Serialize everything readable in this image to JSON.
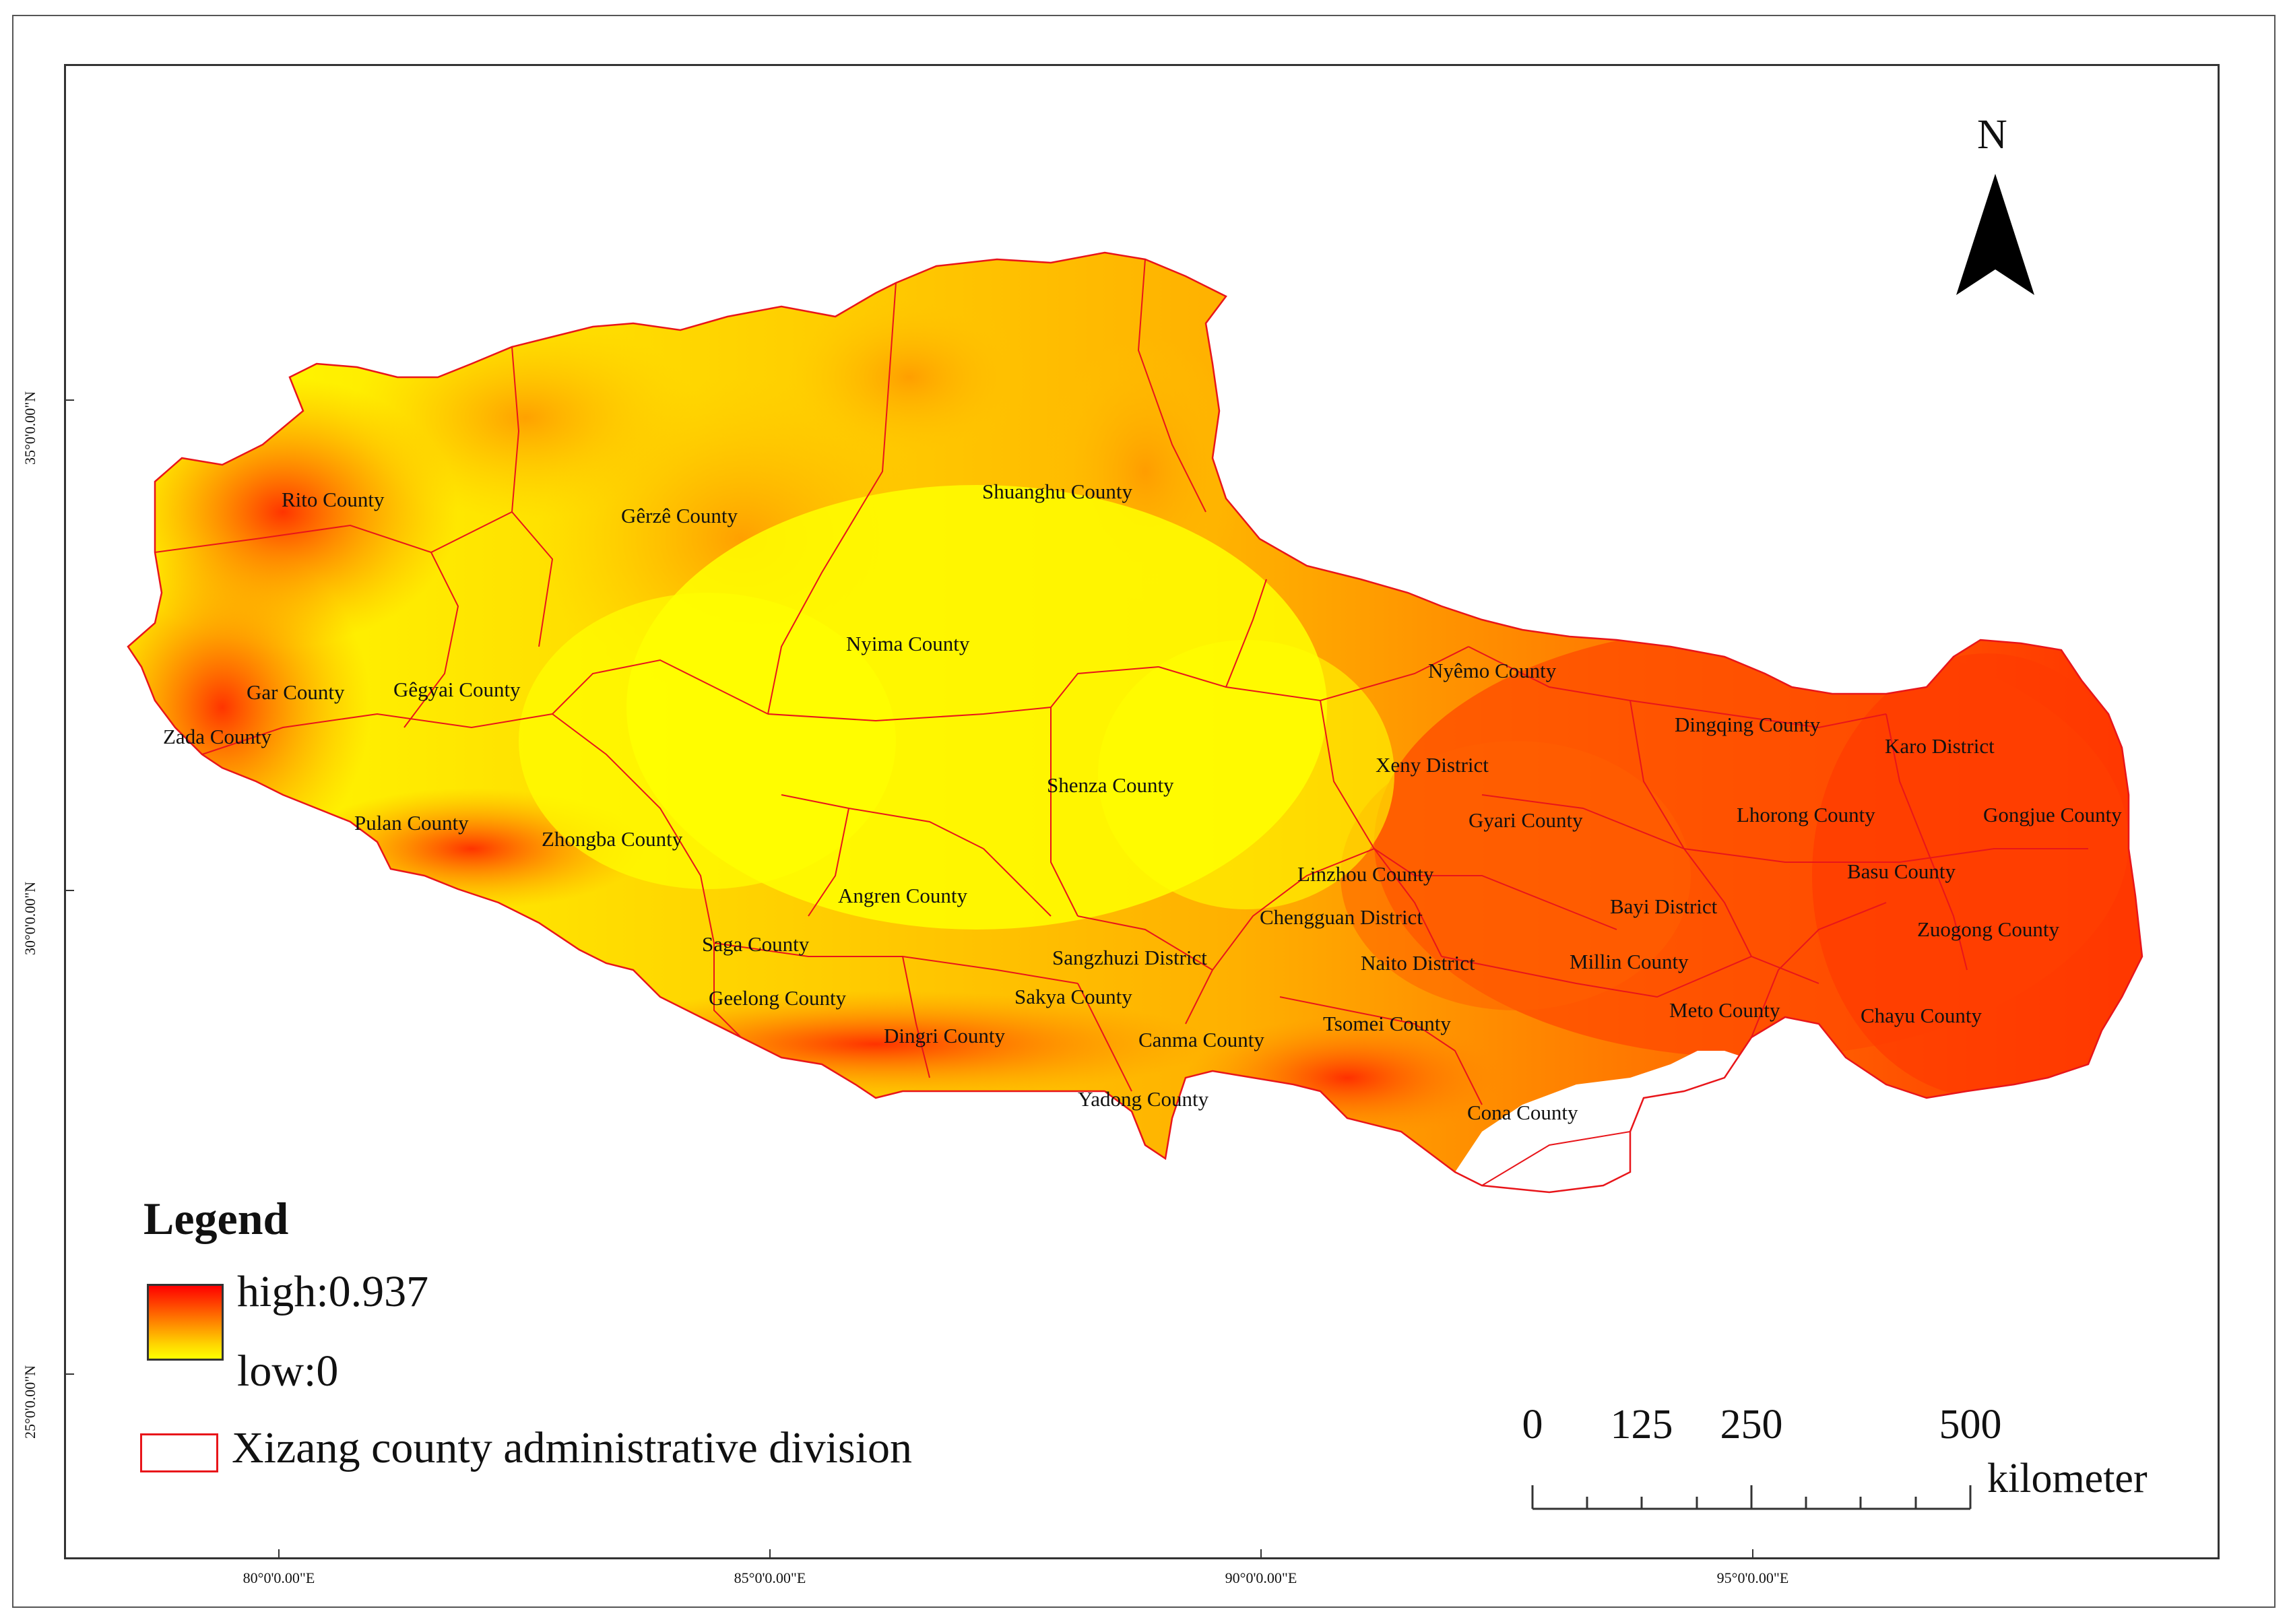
{
  "map": {
    "north_label": "N",
    "longitude_labels": [
      "80°0'0.00\"E",
      "85°0'0.00\"E",
      "90°0'0.00\"E",
      "95°0'0.00\"E"
    ],
    "latitude_labels": [
      "35°0'0.00\"N",
      "30°0'0.00\"N",
      "25°0'0.00\"N"
    ],
    "fill_colors": {
      "high": "#ff0000",
      "mid": "#ff6a00",
      "low": "#ffff00",
      "boundary": "#e8151a"
    },
    "counties": [
      "Rito County",
      "Gêrzê County",
      "Shuanghu County",
      "Nyima County",
      "Gar County",
      "Gêgyai County",
      "Zada County",
      "Nyêmo County",
      "Dingqing County",
      "Karo District",
      "Xeny District",
      "Shenza County",
      "Gyari County",
      "Lhorong County",
      "Gongjue County",
      "Pulan County",
      "Zhongba County",
      "Basu County",
      "Linzhou County",
      "Angren County",
      "Bayi District",
      "Zuogong County",
      "Chengguan District",
      "Saga County",
      "Sangzhuzi District",
      "Naito District",
      "Millin County",
      "Geelong County",
      "Sakya County",
      "Meto County",
      "Chayu County",
      "Dingri County",
      "Tsomei County",
      "Canma County",
      "Yadong County",
      "Cona County"
    ]
  },
  "legend": {
    "title": "Legend",
    "high_label": "high:0.937",
    "low_label": "low:0",
    "boundary_label": "Xizang county administrative division"
  },
  "scale_bar": {
    "ticks": [
      "0",
      "125",
      "250",
      "500"
    ],
    "unit": "kilometer"
  }
}
